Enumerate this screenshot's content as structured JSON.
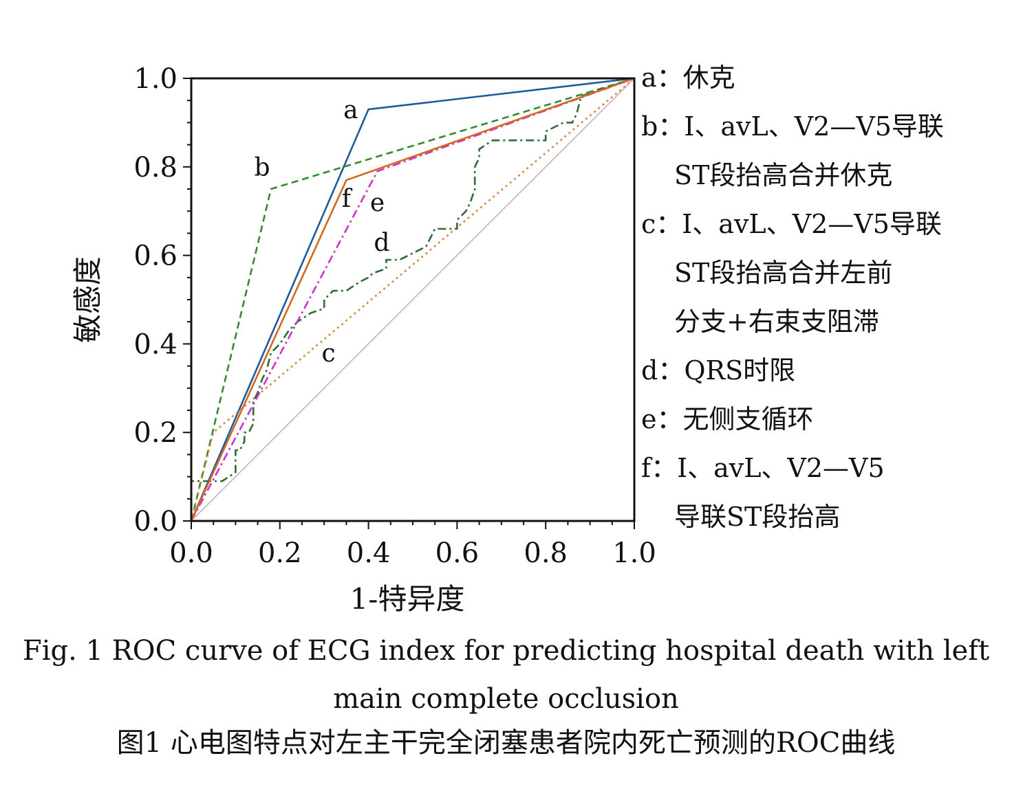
{
  "chart_data": {
    "type": "line",
    "xlabel": "1-特异度",
    "ylabel": "敏感度",
    "xlim": [
      0,
      1
    ],
    "ylim": [
      0,
      1
    ],
    "xticks": [
      "0.0",
      "0.2",
      "0.4",
      "0.6",
      "0.8",
      "1.0"
    ],
    "yticks": [
      "0.0",
      "0.2",
      "0.4",
      "0.6",
      "0.8",
      "1.0"
    ],
    "grid": false,
    "legend_position": "right",
    "series": [
      {
        "name": "a",
        "color": "#1f5b9c",
        "dash": "solid",
        "x": [
          0,
          0.4,
          1.0
        ],
        "y": [
          0,
          0.93,
          1.0
        ]
      },
      {
        "name": "b",
        "color": "#2e8b2e",
        "dash": "dashed",
        "x": [
          0,
          0.18,
          1.0
        ],
        "y": [
          0,
          0.75,
          1.0
        ]
      },
      {
        "name": "c",
        "color": "#d88a3c",
        "dash": "dotted",
        "x": [
          0,
          0.05,
          1.0
        ],
        "y": [
          0,
          0.2,
          1.0
        ]
      },
      {
        "name": "d",
        "color": "#2f6b35",
        "dash": "dashdot",
        "x": [
          0,
          0,
          0.07,
          0.1,
          0.1,
          0.11,
          0.12,
          0.12,
          0.13,
          0.14,
          0.14,
          0.15,
          0.16,
          0.17,
          0.18,
          0.2,
          0.22,
          0.24,
          0.27,
          0.3,
          0.3,
          0.32,
          0.35,
          0.38,
          0.4,
          0.41,
          0.44,
          0.44,
          0.47,
          0.49,
          0.51,
          0.53,
          0.55,
          0.6,
          0.6,
          0.62,
          0.63,
          0.64,
          0.64,
          0.65,
          0.65,
          0.68,
          0.72,
          0.78,
          0.8,
          0.8,
          0.84,
          0.86,
          0.87,
          0.88,
          1.0
        ],
        "y": [
          0,
          0.09,
          0.09,
          0.11,
          0.16,
          0.16,
          0.18,
          0.2,
          0.2,
          0.22,
          0.27,
          0.29,
          0.32,
          0.34,
          0.38,
          0.4,
          0.43,
          0.45,
          0.47,
          0.48,
          0.5,
          0.52,
          0.52,
          0.54,
          0.55,
          0.56,
          0.57,
          0.59,
          0.59,
          0.6,
          0.61,
          0.62,
          0.66,
          0.66,
          0.68,
          0.7,
          0.72,
          0.75,
          0.8,
          0.82,
          0.84,
          0.86,
          0.86,
          0.86,
          0.86,
          0.88,
          0.9,
          0.9,
          0.92,
          0.96,
          1.0
        ]
      },
      {
        "name": "e",
        "color": "#cc33cc",
        "dash": "dashdot",
        "x": [
          0,
          0.42,
          1.0
        ],
        "y": [
          0,
          0.79,
          1.0
        ]
      },
      {
        "name": "f",
        "color": "#d2691e",
        "dash": "solid",
        "x": [
          0,
          0.35,
          1.0
        ],
        "y": [
          0,
          0.77,
          1.0
        ]
      },
      {
        "name": "",
        "color": "#c9a7b2",
        "dash": "solid",
        "x": [
          0,
          1.0
        ],
        "y": [
          0,
          1.0
        ]
      }
    ],
    "annotations": [
      {
        "text": "a",
        "x": 0.36,
        "y": 0.91
      },
      {
        "text": "b",
        "x": 0.16,
        "y": 0.78
      },
      {
        "text": "c",
        "x": 0.31,
        "y": 0.36
      },
      {
        "text": "d",
        "x": 0.43,
        "y": 0.61
      },
      {
        "text": "e",
        "x": 0.42,
        "y": 0.7
      },
      {
        "text": "f",
        "x": 0.35,
        "y": 0.71
      }
    ]
  },
  "legend": [
    {
      "lines": [
        "a：休克"
      ]
    },
    {
      "lines": [
        "b：Ⅰ、avL、V2—V5导联",
        "ST段抬高合并休克"
      ]
    },
    {
      "lines": [
        "c：Ⅰ、avL、V2—V5导联",
        "ST段抬高合并左前",
        "分支+右束支阻滞"
      ]
    },
    {
      "lines": [
        "d：QRS时限"
      ]
    },
    {
      "lines": [
        "e：无侧支循环"
      ]
    },
    {
      "lines": [
        "f：Ⅰ、avL、V2—V5",
        "导联ST段抬高"
      ]
    }
  ],
  "caption": {
    "en_line1": "Fig. 1    ROC curve of ECG index for predicting hospital death with left",
    "en_line2": "main complete occlusion",
    "zh": "图1    心电图特点对左主干完全闭塞患者院内死亡预测的ROC曲线"
  }
}
